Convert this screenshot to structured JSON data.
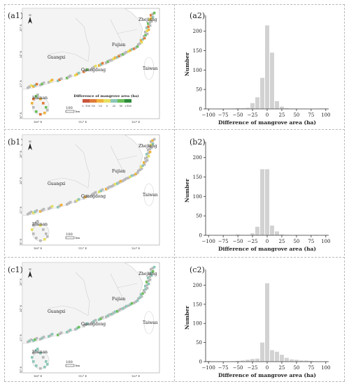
{
  "panels": [
    {
      "map_label": "(a1)",
      "hist_label": "(a2)",
      "map": {
        "regions": [
          "Zhejiang",
          "Fujian",
          "Guangdong",
          "Guangxi",
          "Taiwan",
          "Hainan"
        ],
        "lat_ticks": [
          "25° N",
          "24° N",
          "21° N",
          "18° N"
        ],
        "lon_ticks": [
          "108° E",
          "112° E",
          "120° E"
        ],
        "north_arrow": "N",
        "scale_value": "100",
        "scale_unit": "km",
        "legend_title": "Difference of mangrove area (ha)",
        "legend_labels": [
          "< -100",
          "-50",
          "-25",
          "0",
          "25",
          "50",
          ">100"
        ],
        "legend_colors": [
          "#c8553d",
          "#e07b39",
          "#f0b33c",
          "#e6df60",
          "#8cc6b8",
          "#6bbf59",
          "#2e8b3a"
        ]
      }
    },
    {
      "map_label": "(b1)",
      "hist_label": "(b2)",
      "map": {
        "regions": [
          "Zhejiang",
          "Fujian",
          "Guangdong",
          "Guangxi",
          "Taiwan",
          "Hainan"
        ],
        "lat_ticks": [
          "25° N",
          "24° N",
          "21° N",
          "18° N"
        ],
        "lon_ticks": [
          "108° E",
          "112° E",
          "120° E"
        ],
        "north_arrow": "N",
        "scale_value": "100",
        "scale_unit": "km"
      }
    },
    {
      "map_label": "(c1)",
      "hist_label": "(c2)",
      "map": {
        "regions": [
          "Zhejiang",
          "Fujian",
          "Guangdong",
          "Guangxi",
          "Taiwan",
          "Hainan"
        ],
        "lat_ticks": [
          "25° N",
          "24° N",
          "21° N",
          "18° N"
        ],
        "lon_ticks": [
          "108° E",
          "112° E",
          "120° E"
        ],
        "north_arrow": "N",
        "scale_value": "100",
        "scale_unit": "km"
      }
    }
  ],
  "chart_data": [
    {
      "type": "bar",
      "title": "",
      "xlabel": "Difference of mangrove area (ha)",
      "ylabel": "Number",
      "xticks": [
        -100,
        -75,
        -50,
        -25,
        0,
        25,
        50,
        75,
        100
      ],
      "yticks": [
        0,
        50,
        100,
        150,
        200
      ],
      "ylim": [
        0,
        230
      ],
      "xlim": [
        -105,
        105
      ],
      "bin_width": 8.3,
      "x": [
        -100,
        -91.7,
        -83.3,
        -75,
        -66.7,
        -58.3,
        -50,
        -41.7,
        -33.3,
        -25,
        -16.7,
        -8.3,
        0,
        8.3,
        16.7,
        25,
        33.3,
        41.7,
        50,
        58.3,
        66.7,
        75,
        83.3,
        91.7,
        100
      ],
      "values": [
        1,
        0,
        0,
        0,
        0,
        1,
        2,
        2,
        3,
        15,
        30,
        80,
        215,
        145,
        20,
        6,
        2,
        1,
        1,
        0,
        0,
        0,
        0,
        1,
        1
      ]
    },
    {
      "type": "bar",
      "title": "",
      "xlabel": "Difference of mangrove area (ha)",
      "ylabel": "Number",
      "xticks": [
        -100,
        -75,
        -50,
        -25,
        0,
        25,
        50,
        75,
        100
      ],
      "yticks": [
        0,
        50,
        100,
        150,
        200
      ],
      "ylim": [
        0,
        230
      ],
      "xlim": [
        -105,
        105
      ],
      "bin_width": 8.3,
      "x": [
        -100,
        -91.7,
        -83.3,
        -75,
        -66.7,
        -58.3,
        -50,
        -41.7,
        -33.3,
        -25,
        -16.7,
        -8.3,
        0,
        8.3,
        16.7,
        25,
        33.3,
        41.7,
        50,
        58.3,
        66.7,
        75,
        83.3,
        91.7,
        100
      ],
      "values": [
        1,
        0,
        0,
        0,
        0,
        0,
        2,
        1,
        1,
        5,
        22,
        170,
        170,
        25,
        10,
        2,
        1,
        0,
        1,
        0,
        0,
        0,
        1,
        0,
        1
      ]
    },
    {
      "type": "bar",
      "title": "",
      "xlabel": "Difference of mangrove area (ha)",
      "ylabel": "Number",
      "xticks": [
        -100,
        -75,
        -50,
        -25,
        0,
        25,
        50,
        75,
        100
      ],
      "yticks": [
        0,
        50,
        100,
        150,
        200
      ],
      "ylim": [
        0,
        230
      ],
      "xlim": [
        -105,
        105
      ],
      "bin_width": 8.3,
      "x": [
        -100,
        -91.7,
        -83.3,
        -75,
        -66.7,
        -58.3,
        -50,
        -41.7,
        -33.3,
        -25,
        -16.7,
        -8.3,
        0,
        8.3,
        16.7,
        25,
        33.3,
        41.7,
        50,
        58.3,
        66.7,
        75,
        83.3,
        91.7,
        100
      ],
      "values": [
        2,
        1,
        1,
        0,
        0,
        1,
        2,
        3,
        5,
        7,
        8,
        50,
        205,
        30,
        26,
        18,
        10,
        6,
        5,
        3,
        3,
        2,
        1,
        1,
        1
      ]
    }
  ]
}
